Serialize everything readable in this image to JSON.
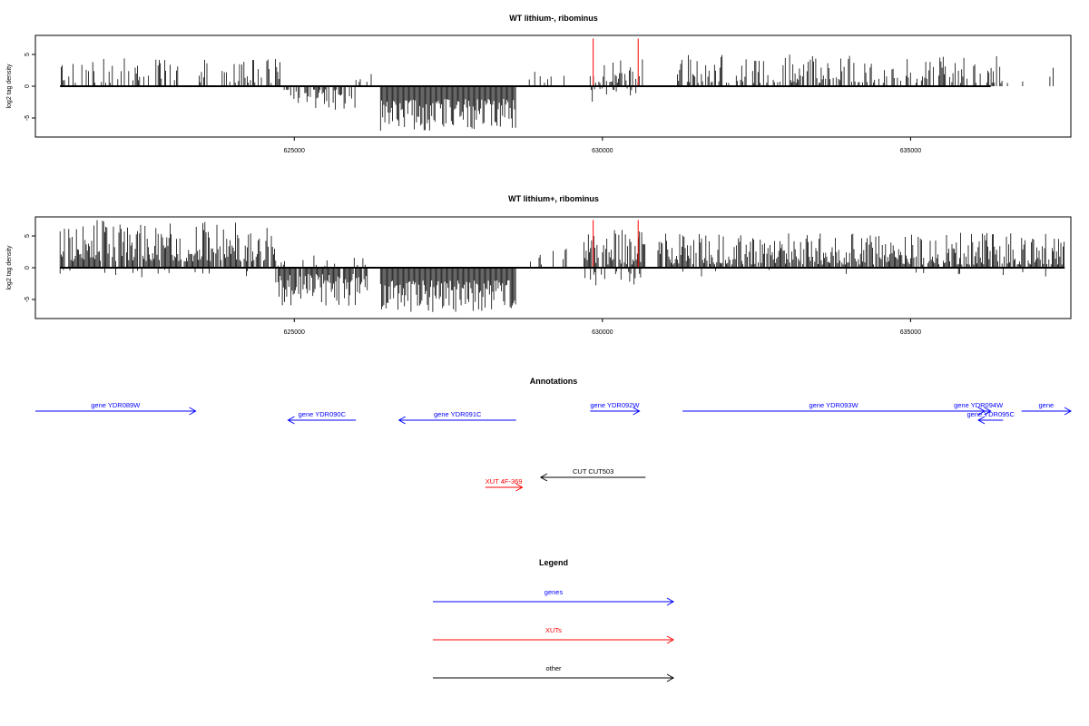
{
  "colors": {
    "genes": "#0000ff",
    "xuts": "#ff0000",
    "other": "#000000",
    "signal": "#000000",
    "highlight": "#ff0000"
  },
  "chart_data": [
    {
      "type": "bar",
      "title": "WT lithium-, ribominus",
      "ylabel": "log2 tag density",
      "xlim": [
        620800,
        637600
      ],
      "ylim": [
        -8,
        8
      ],
      "x_ticks": [
        625000,
        630000,
        635000
      ],
      "y_ticks": [
        -5,
        0,
        5
      ],
      "grid": false,
      "baseline_x_range": [
        621200,
        636300
      ],
      "highlight_positions": [
        629850,
        630580
      ],
      "highlight_values": [
        7.5,
        7.5
      ],
      "note_data_density": "dense strand-specific signal; values summarized per genomic segment",
      "segments": [
        {
          "x_range": [
            621200,
            623300
          ],
          "amp_min": 0.5,
          "amp_max": 4.5,
          "sign": 1,
          "density": 0.35
        },
        {
          "x_range": [
            623300,
            624800
          ],
          "amp_min": 0.5,
          "amp_max": 4.5,
          "sign": 1,
          "density": 0.35
        },
        {
          "x_range": [
            624800,
            626000
          ],
          "amp_min": 0.5,
          "amp_max": 3.8,
          "sign": -1,
          "density": 0.55
        },
        {
          "x_range": [
            626000,
            626400
          ],
          "amp_min": 0.5,
          "amp_max": 2.5,
          "sign": 1,
          "density": 0.25
        },
        {
          "x_range": [
            626400,
            628600
          ],
          "amp_min": 2.0,
          "amp_max": 7.0,
          "sign": -1,
          "density": 1.0
        },
        {
          "x_range": [
            628600,
            629450
          ],
          "amp_min": 0.5,
          "amp_max": 2.5,
          "sign": 1,
          "density": 0.1
        },
        {
          "x_range": [
            629800,
            630650
          ],
          "amp_min": 0.5,
          "amp_max": 4.5,
          "sign": 1,
          "density": 0.6
        },
        {
          "x_range": [
            629800,
            630650
          ],
          "amp_min": 0.3,
          "amp_max": 2.5,
          "sign": -1,
          "density": 0.25
        },
        {
          "x_range": [
            631200,
            636500
          ],
          "amp_min": 0.5,
          "amp_max": 5.0,
          "sign": 1,
          "density": 0.45
        },
        {
          "x_range": [
            636500,
            637500
          ],
          "amp_min": 0.5,
          "amp_max": 3.0,
          "sign": 1,
          "density": 0.12
        }
      ]
    },
    {
      "type": "bar",
      "title": "WT lithium+, ribominus",
      "ylabel": "log2 tag density",
      "xlim": [
        620800,
        637600
      ],
      "ylim": [
        -8,
        8
      ],
      "x_ticks": [
        625000,
        630000,
        635000
      ],
      "y_ticks": [
        -5,
        0,
        5
      ],
      "grid": false,
      "baseline_x_range": [
        621200,
        637500
      ],
      "highlight_positions": [
        629850,
        630580
      ],
      "highlight_values": [
        7.5,
        7.5
      ],
      "note_data_density": "dense strand-specific signal; values summarized per genomic segment",
      "segments": [
        {
          "x_range": [
            621200,
            624700
          ],
          "amp_min": 1.0,
          "amp_max": 7.5,
          "sign": 1,
          "density": 0.9
        },
        {
          "x_range": [
            621200,
            624700
          ],
          "amp_min": 0.3,
          "amp_max": 1.5,
          "sign": -1,
          "density": 0.1
        },
        {
          "x_range": [
            624700,
            626200
          ],
          "amp_min": 1.0,
          "amp_max": 6.0,
          "sign": -1,
          "density": 0.9
        },
        {
          "x_range": [
            624700,
            626200
          ],
          "amp_min": 0.3,
          "amp_max": 2.0,
          "sign": 1,
          "density": 0.15
        },
        {
          "x_range": [
            626400,
            628600
          ],
          "amp_min": 2.0,
          "amp_max": 7.0,
          "sign": -1,
          "density": 1.0
        },
        {
          "x_range": [
            628600,
            629500
          ],
          "amp_min": 0.5,
          "amp_max": 3.0,
          "sign": 1,
          "density": 0.15
        },
        {
          "x_range": [
            629700,
            630700
          ],
          "amp_min": 0.5,
          "amp_max": 6.0,
          "sign": 1,
          "density": 0.8
        },
        {
          "x_range": [
            629700,
            630700
          ],
          "amp_min": 0.5,
          "amp_max": 3.0,
          "sign": -1,
          "density": 0.3
        },
        {
          "x_range": [
            630900,
            637500
          ],
          "amp_min": 0.5,
          "amp_max": 5.5,
          "sign": 1,
          "density": 0.85
        },
        {
          "x_range": [
            630900,
            637500
          ],
          "amp_min": 0.3,
          "amp_max": 1.5,
          "sign": -1,
          "density": 0.05
        }
      ]
    }
  ],
  "annotations": {
    "title": "Annotations",
    "features": [
      {
        "label": "gene YDR089W",
        "kind": "genes",
        "strand": "+",
        "x_range": [
          620800,
          623400
        ],
        "row": 0
      },
      {
        "label": "gene YDR090C",
        "kind": "genes",
        "strand": "-",
        "x_range": [
          624900,
          626000
        ],
        "row": 1
      },
      {
        "label": "gene YDR091C",
        "kind": "genes",
        "strand": "-",
        "x_range": [
          626700,
          628600
        ],
        "row": 1
      },
      {
        "label": "gene YDR092W",
        "kind": "genes",
        "strand": "+",
        "x_range": [
          629800,
          630600
        ],
        "row": 0
      },
      {
        "label": "gene YDR093W",
        "kind": "genes",
        "strand": "+",
        "x_range": [
          631300,
          636200
        ],
        "row": 0
      },
      {
        "label": "gene YDR094W",
        "kind": "genes",
        "strand": "+",
        "x_range": [
          635900,
          636300
        ],
        "row": 0
      },
      {
        "label": "gene YDR095C",
        "kind": "genes",
        "strand": "-",
        "x_range": [
          636100,
          636500
        ],
        "row": 1
      },
      {
        "label": "gene",
        "kind": "genes",
        "strand": "+",
        "x_range": [
          636800,
          637600
        ],
        "row": 0
      },
      {
        "label": "CUT CUT503",
        "kind": "other",
        "strand": "-",
        "x_range": [
          629000,
          630700
        ],
        "row": 3
      },
      {
        "label": "XUT 4F-369",
        "kind": "xuts",
        "strand": "+",
        "x_range": [
          628100,
          628700
        ],
        "row": 4
      }
    ]
  },
  "legend": {
    "title": "Legend",
    "entries": [
      {
        "label": "genes",
        "kind": "genes"
      },
      {
        "label": "XUTs",
        "kind": "xuts"
      },
      {
        "label": "other",
        "kind": "other"
      }
    ]
  }
}
